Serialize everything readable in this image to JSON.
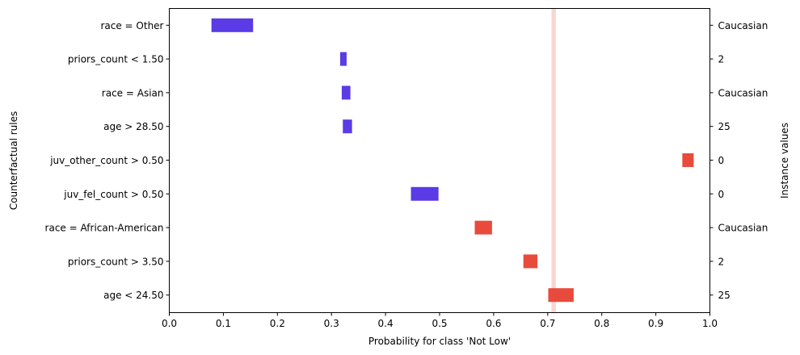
{
  "chart_data": {
    "type": "bar",
    "orientation": "horizontal-interval",
    "xlabel": "Probability for class 'Not Low'",
    "ylabel_left": "Counterfactual rules",
    "ylabel_right": "Instance values",
    "xlim": [
      0.0,
      1.0
    ],
    "xticks": [
      "0.0",
      "0.1",
      "0.2",
      "0.3",
      "0.4",
      "0.5",
      "0.6",
      "0.7",
      "0.8",
      "0.9",
      "1.0"
    ],
    "baseline": {
      "low": 0.707,
      "high": 0.715,
      "color": "#f9d5d3"
    },
    "colors": {
      "decrease": "#5a3be6",
      "increase": "#e84b3c"
    },
    "rules": [
      {
        "label": "race = Other",
        "instance_value": "Caucasian",
        "low": 0.078,
        "high": 0.155,
        "direction": "decrease"
      },
      {
        "label": "priors_count < 1.50",
        "instance_value": "2",
        "low": 0.316,
        "high": 0.328,
        "direction": "decrease"
      },
      {
        "label": "race = Asian",
        "instance_value": "Caucasian",
        "low": 0.319,
        "high": 0.335,
        "direction": "decrease"
      },
      {
        "label": "age > 28.50",
        "instance_value": "25",
        "low": 0.321,
        "high": 0.338,
        "direction": "decrease"
      },
      {
        "label": "juv_other_count > 0.50",
        "instance_value": "0",
        "low": 0.949,
        "high": 0.97,
        "direction": "increase"
      },
      {
        "label": "juv_fel_count > 0.50",
        "instance_value": "0",
        "low": 0.447,
        "high": 0.498,
        "direction": "decrease"
      },
      {
        "label": "race = African-American",
        "instance_value": "Caucasian",
        "low": 0.565,
        "high": 0.597,
        "direction": "increase"
      },
      {
        "label": "priors_count > 3.50",
        "instance_value": "2",
        "low": 0.655,
        "high": 0.681,
        "direction": "increase"
      },
      {
        "label": "age < 24.50",
        "instance_value": "25",
        "low": 0.701,
        "high": 0.748,
        "direction": "increase"
      }
    ]
  }
}
